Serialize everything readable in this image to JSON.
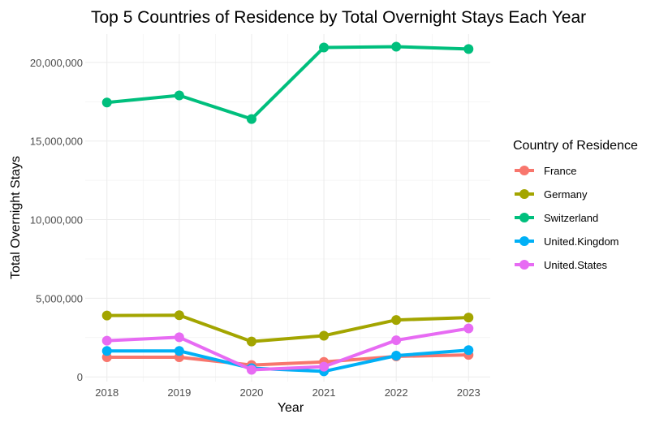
{
  "chart_data": {
    "type": "line",
    "title": "Top 5 Countries of Residence by Total Overnight Stays Each Year",
    "xlabel": "Year",
    "ylabel": "Total Overnight Stays",
    "x": [
      2018,
      2019,
      2020,
      2021,
      2022,
      2023
    ],
    "x_tick_labels": [
      "2018",
      "2019",
      "2020",
      "2021",
      "2022",
      "2023"
    ],
    "y_ticks": [
      0,
      5000000,
      10000000,
      15000000,
      20000000
    ],
    "y_tick_labels": [
      "0",
      "5,000,000",
      "10,000,000",
      "15,000,000",
      "20,000,000"
    ],
    "ylim": [
      -300000,
      21800000
    ],
    "grid": true,
    "legend_title": "Country of Residence",
    "legend_position": "right",
    "series": [
      {
        "name": "France",
        "color": "#F8766D",
        "values": [
          1250000,
          1250000,
          750000,
          950000,
          1300000,
          1400000
        ]
      },
      {
        "name": "Germany",
        "color": "#A3A500",
        "values": [
          3900000,
          3920000,
          2250000,
          2620000,
          3620000,
          3770000
        ]
      },
      {
        "name": "Switzerland",
        "color": "#00BF7D",
        "values": [
          17450000,
          17900000,
          16400000,
          20950000,
          21000000,
          20850000
        ]
      },
      {
        "name": "United.Kingdom",
        "color": "#00B0F6",
        "values": [
          1650000,
          1650000,
          550000,
          350000,
          1350000,
          1700000
        ]
      },
      {
        "name": "United.States",
        "color": "#E76BF3",
        "values": [
          2300000,
          2520000,
          450000,
          650000,
          2330000,
          3080000
        ]
      }
    ]
  }
}
